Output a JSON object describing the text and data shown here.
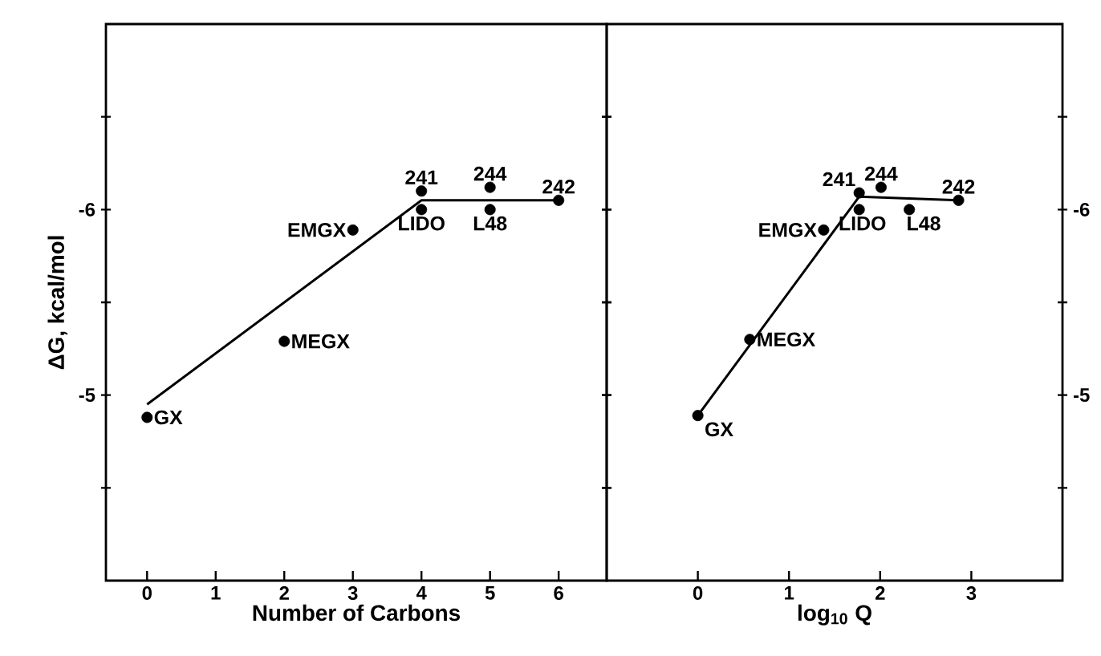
{
  "chart_data": [
    {
      "type": "scatter",
      "xlabel": "Number of Carbons",
      "ylabel": "ΔG, kcal/mol",
      "xlim": [
        -0.6,
        6.7
      ],
      "xticks": [
        0,
        1,
        2,
        3,
        4,
        5,
        6
      ],
      "ylim": [
        -4,
        -7
      ],
      "yticks": [
        {
          "value": -6.5,
          "label": null
        },
        -6,
        {
          "value": -5.5,
          "label": null
        },
        -5,
        {
          "value": -4.5,
          "label": null
        }
      ],
      "marker": "circle",
      "series": [
        {
          "color": "#000000",
          "x": [
            0,
            2,
            3,
            4,
            4,
            5,
            5,
            6
          ],
          "values": [
            -4.88,
            -5.29,
            -5.89,
            -6.1,
            -6.0,
            -6.12,
            -6.0,
            -6.05
          ]
        },
        {
          "type": "line",
          "color": "#000000",
          "marker": "none",
          "x": [
            0,
            4,
            6
          ],
          "values": [
            -4.95,
            -6.05,
            -6.05
          ]
        }
      ],
      "annotations": [
        {
          "text": "GX",
          "x": 0,
          "y": -4.88
        },
        {
          "text": "MEGX",
          "x": 2,
          "y": -5.29
        },
        {
          "text": "EMGX",
          "x": 3,
          "y": -5.89
        },
        {
          "text": "241",
          "x": 4,
          "y": -6.1
        },
        {
          "text": "LIDO",
          "x": 4,
          "y": -6.0
        },
        {
          "text": "244",
          "x": 5,
          "y": -6.12
        },
        {
          "text": "L48",
          "x": 5,
          "y": -6.0
        },
        {
          "text": "242",
          "x": 6,
          "y": -6.05
        }
      ]
    },
    {
      "type": "scatter",
      "xlabel": "log$_{10}$ Q",
      "xlim": [
        -1,
        4
      ],
      "xticks": [
        0,
        1,
        2,
        3
      ],
      "ylim": [
        -4,
        -7
      ],
      "yticks": [
        {
          "value": -6.5,
          "label": null
        },
        -6,
        {
          "value": -5.5,
          "label": null
        },
        -5,
        {
          "value": -4.5,
          "label": null
        }
      ],
      "marker": "circle",
      "series": [
        {
          "color": "#000000",
          "x": [
            0,
            0.57,
            1.38,
            1.77,
            1.77,
            2.01,
            2.32,
            2.86
          ],
          "values": [
            -4.89,
            -5.3,
            -5.89,
            -6.09,
            -6.0,
            -6.12,
            -6.0,
            -6.05
          ]
        },
        {
          "type": "line",
          "color": "#000000",
          "marker": "none",
          "x": [
            0,
            1.77,
            2.86
          ],
          "values": [
            -4.89,
            -6.07,
            -6.05
          ]
        }
      ],
      "annotations": [
        {
          "text": "GX",
          "x": 0,
          "y": -4.89
        },
        {
          "text": "MEGX",
          "x": 0.57,
          "y": -5.3
        },
        {
          "text": "EMGX",
          "x": 1.38,
          "y": -5.89
        },
        {
          "text": "241",
          "x": 1.77,
          "y": -6.09
        },
        {
          "text": "LIDO",
          "x": 1.77,
          "y": -6.0
        },
        {
          "text": "244",
          "x": 2.01,
          "y": -6.12
        },
        {
          "text": "L48",
          "x": 2.32,
          "y": -6.0
        },
        {
          "text": "242",
          "x": 2.86,
          "y": -6.05
        }
      ]
    }
  ]
}
